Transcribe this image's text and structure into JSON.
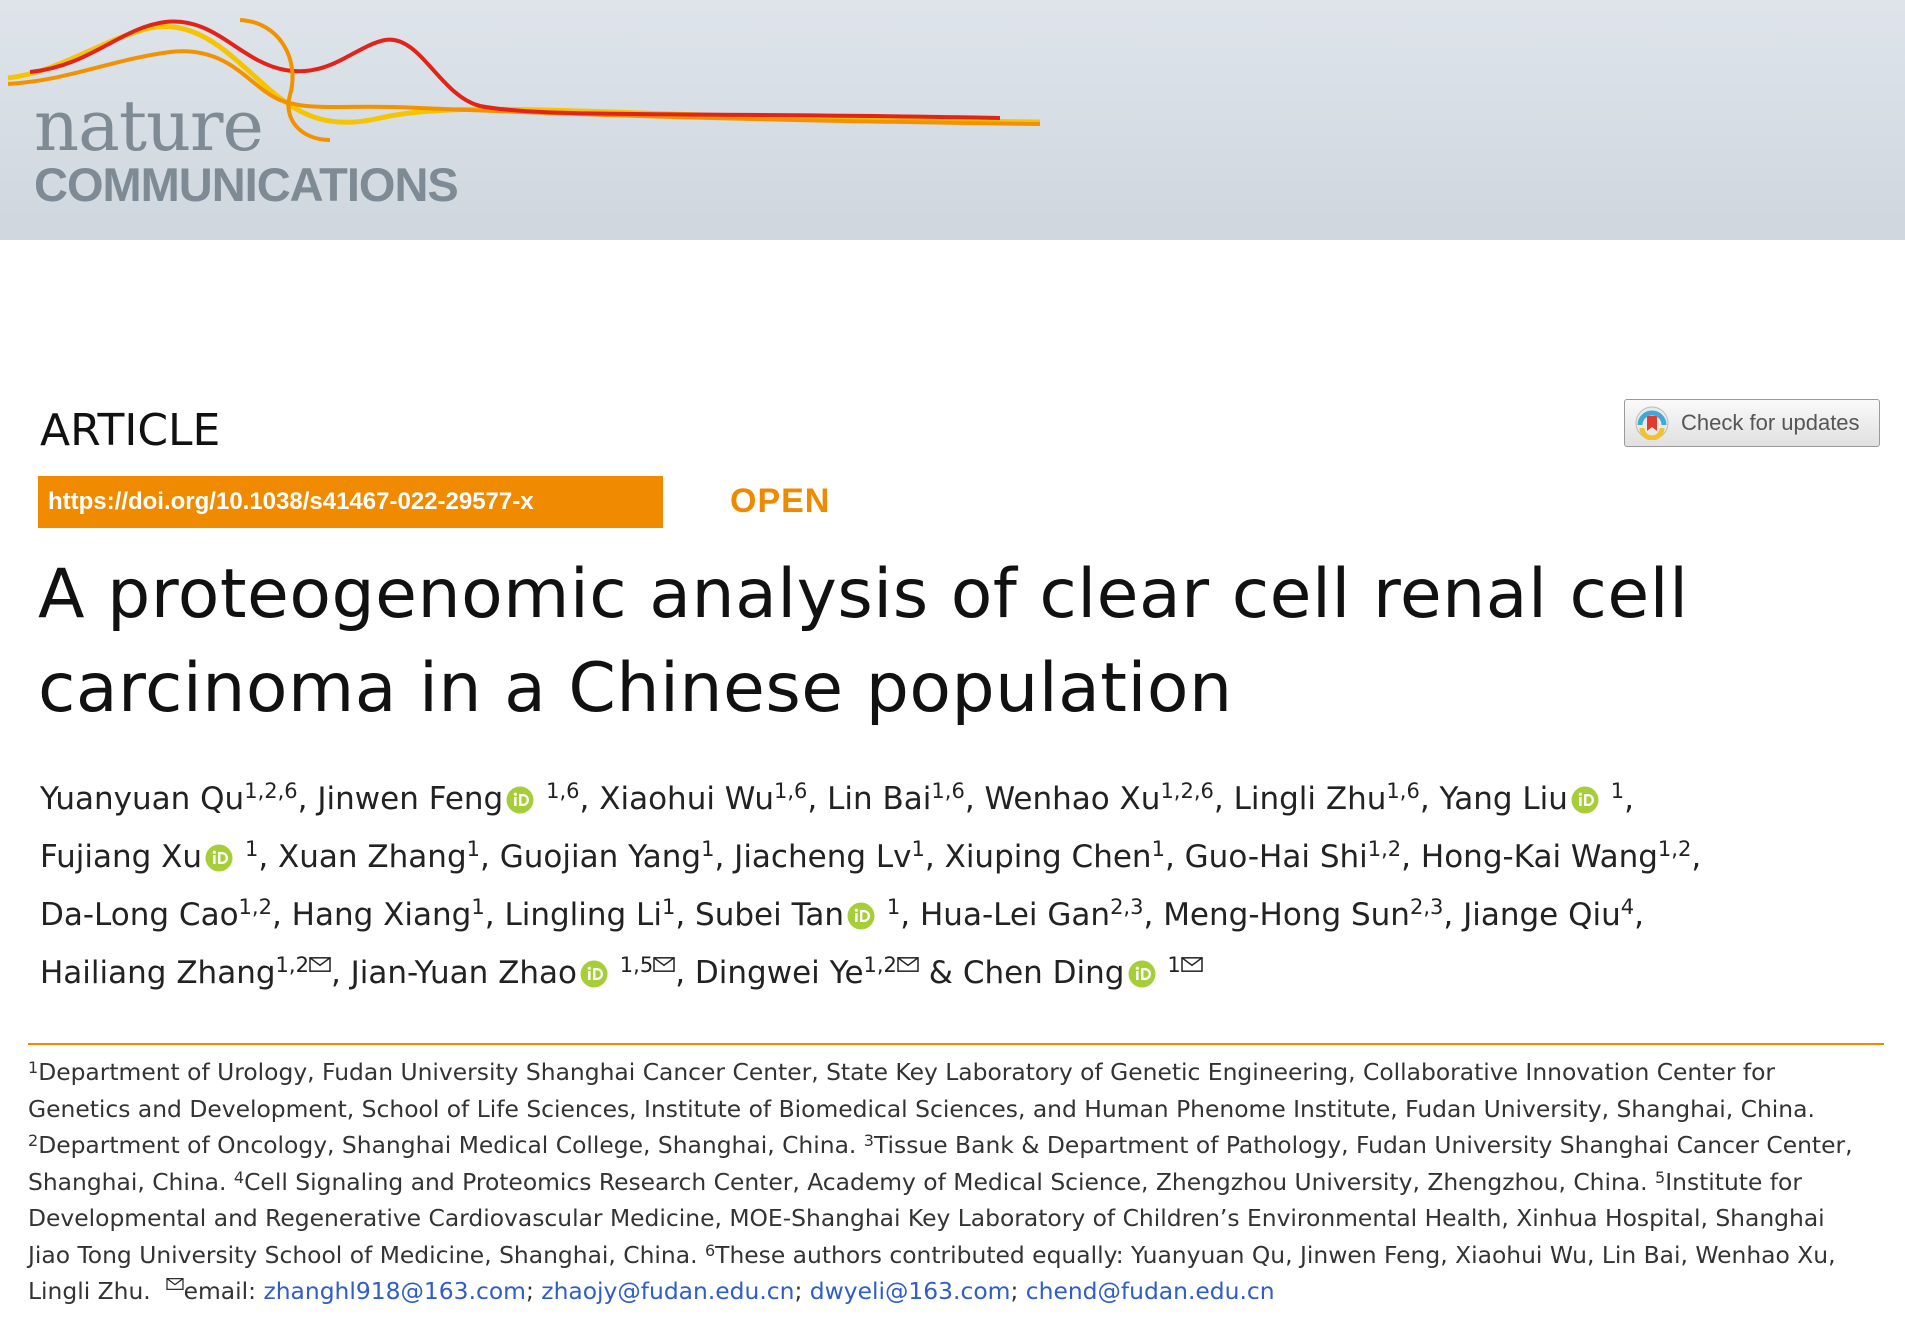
{
  "journal": {
    "name_line1": "nature",
    "name_line2": "COMMUNICATIONS"
  },
  "article_type": "ARTICLE",
  "check_updates_label": "Check for updates",
  "doi": "https://doi.org/10.1038/s41467-022-29577-x",
  "open_label": "OPEN",
  "title": {
    "line1": "A proteogenomic analysis of clear cell renal cell",
    "line2": "carcinoma in a Chinese population"
  },
  "authors": [
    {
      "name": "Yuanyuan Qu",
      "sup": "1,2,6",
      "orcid": false,
      "corresponding": false,
      "sep": ", "
    },
    {
      "name": "Jinwen Feng",
      "sup": "1,6",
      "orcid": true,
      "corresponding": false,
      "sep": ", "
    },
    {
      "name": "Xiaohui Wu",
      "sup": "1,6",
      "orcid": false,
      "corresponding": false,
      "sep": ", "
    },
    {
      "name": "Lin Bai",
      "sup": "1,6",
      "orcid": false,
      "corresponding": false,
      "sep": ", "
    },
    {
      "name": "Wenhao Xu",
      "sup": "1,2,6",
      "orcid": false,
      "corresponding": false,
      "sep": ", "
    },
    {
      "name": "Lingli Zhu",
      "sup": "1,6",
      "orcid": false,
      "corresponding": false,
      "sep": ", "
    },
    {
      "name": "Yang Liu",
      "sup": "1",
      "orcid": true,
      "corresponding": false,
      "sep": ","
    },
    {
      "name": "Fujiang Xu",
      "sup": "1",
      "orcid": true,
      "corresponding": false,
      "sep": ", "
    },
    {
      "name": "Xuan Zhang",
      "sup": "1",
      "orcid": false,
      "corresponding": false,
      "sep": ", "
    },
    {
      "name": "Guojian Yang",
      "sup": "1",
      "orcid": false,
      "corresponding": false,
      "sep": ", "
    },
    {
      "name": "Jiacheng Lv",
      "sup": "1",
      "orcid": false,
      "corresponding": false,
      "sep": ", "
    },
    {
      "name": "Xiuping Chen",
      "sup": "1",
      "orcid": false,
      "corresponding": false,
      "sep": ", "
    },
    {
      "name": "Guo-Hai Shi",
      "sup": "1,2",
      "orcid": false,
      "corresponding": false,
      "sep": ", "
    },
    {
      "name": "Hong-Kai Wang",
      "sup": "1,2",
      "orcid": false,
      "corresponding": false,
      "sep": ","
    },
    {
      "name": "Da-Long Cao",
      "sup": "1,2",
      "orcid": false,
      "corresponding": false,
      "sep": ", "
    },
    {
      "name": "Hang Xiang",
      "sup": "1",
      "orcid": false,
      "corresponding": false,
      "sep": ", "
    },
    {
      "name": "Lingling Li",
      "sup": "1",
      "orcid": false,
      "corresponding": false,
      "sep": ", "
    },
    {
      "name": "Subei Tan",
      "sup": "1",
      "orcid": true,
      "corresponding": false,
      "sep": ", "
    },
    {
      "name": "Hua-Lei Gan",
      "sup": "2,3",
      "orcid": false,
      "corresponding": false,
      "sep": ", "
    },
    {
      "name": "Meng-Hong Sun",
      "sup": "2,3",
      "orcid": false,
      "corresponding": false,
      "sep": ", "
    },
    {
      "name": "Jiange Qiu",
      "sup": "4",
      "orcid": false,
      "corresponding": false,
      "sep": ","
    },
    {
      "name": "Hailiang Zhang",
      "sup": "1,2",
      "orcid": false,
      "corresponding": true,
      "sep": ", "
    },
    {
      "name": "Jian-Yuan Zhao",
      "sup": "1,5",
      "orcid": true,
      "corresponding": true,
      "sep": ", "
    },
    {
      "name": "Dingwei Ye",
      "sup": "1,2",
      "orcid": false,
      "corresponding": true,
      "sep": " & "
    },
    {
      "name": "Chen Ding",
      "sup": "1",
      "orcid": true,
      "corresponding": true,
      "sep": ""
    }
  ],
  "affiliations": {
    "l1_sup": "1",
    "l1": "Department of Urology, Fudan University Shanghai Cancer Center, State Key Laboratory of Genetic Engineering, Collaborative Innovation Center for",
    "l2": "Genetics and Development, School of Life Sciences, Institute of Biomedical Sciences, and Human Phenome Institute, Fudan University, Shanghai, China.",
    "l3_sup_a": "2",
    "l3_a": "Department of Oncology, Shanghai Medical College, Shanghai, China.",
    "l3_sup_b": "3",
    "l3_b": "Tissue Bank & Department of Pathology, Fudan University Shanghai Cancer Center,",
    "l4_a": "Shanghai, China.",
    "l4_sup_b": "4",
    "l4_b": "Cell Signaling and Proteomics Research Center, Academy of Medical Science, Zhengzhou University, Zhengzhou, China.",
    "l4_sup_c": "5",
    "l4_c": "Institute for",
    "l5": "Developmental and Regenerative Cardiovascular Medicine, MOE-Shanghai Key Laboratory of Children’s Environmental Health, Xinhua Hospital, Shanghai",
    "l6_a": "Jiao Tong University School of Medicine, Shanghai, China.",
    "l6_sup_b": "6",
    "l6_b": "These authors contributed equally: Yuanyuan Qu, Jinwen Feng, Xiaohui Wu, Lin Bai, Wenhao Xu,",
    "l7_a": "Lingli Zhu.",
    "email_label": "email:",
    "emails": [
      "zhanghl918@163.com",
      "zhaojy@fudan.edu.cn",
      "dwyeli@163.com",
      "chend@fudan.edu.cn"
    ],
    "email_sep": "; "
  },
  "colors": {
    "accent_orange": "#f08a00",
    "orcid_green": "#a6ce39",
    "link_blue": "#2f5ec4",
    "banner_bg": "#d4dbe1"
  },
  "icons": [
    "orcid-icon",
    "envelope-icon",
    "crossmark-icon",
    "journal-wave-logo"
  ]
}
